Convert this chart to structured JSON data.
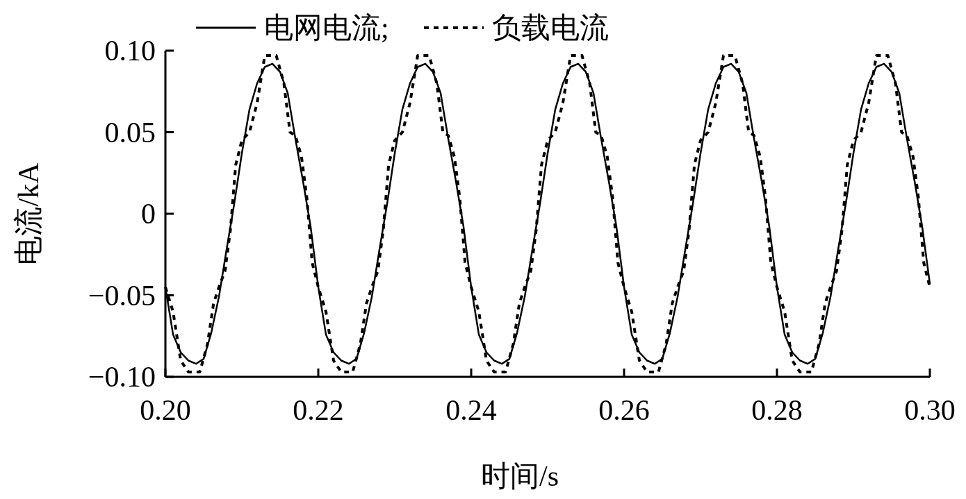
{
  "chart_data": {
    "type": "line",
    "xlabel": "时间/s",
    "ylabel": "电流/kA",
    "legend": "top",
    "xlim": [
      0.2,
      0.3
    ],
    "ylim": [
      -0.1,
      0.1
    ],
    "xticks": [
      {
        "value": 0.2,
        "label": "0.20"
      },
      0.22,
      0.24,
      0.26,
      0.28,
      {
        "value": 0.3,
        "label": "0.30"
      }
    ],
    "yticks": [
      {
        "value": -0.1,
        "label": "−0.10"
      },
      {
        "value": -0.05,
        "label": "−0.05"
      },
      0,
      0.05,
      {
        "value": 0.1,
        "label": "0.10"
      }
    ],
    "series": [
      {
        "name": "电网电流;",
        "color": "#000000",
        "line_style": "solid",
        "x": [
          0.2,
          0.201,
          0.202,
          0.203,
          0.204,
          0.205,
          0.206,
          0.207,
          0.208,
          0.209,
          0.21,
          0.211,
          0.212,
          0.213,
          0.214,
          0.215,
          0.216,
          0.217,
          0.218,
          0.219,
          0.22,
          0.221,
          0.222,
          0.223,
          0.224,
          0.225,
          0.226,
          0.227,
          0.228,
          0.229,
          0.23,
          0.231,
          0.232,
          0.233,
          0.234,
          0.235,
          0.236,
          0.237,
          0.238,
          0.239,
          0.24,
          0.241,
          0.242,
          0.243,
          0.244,
          0.245,
          0.246,
          0.247,
          0.248,
          0.249,
          0.25,
          0.251,
          0.252,
          0.253,
          0.254,
          0.255,
          0.256,
          0.257,
          0.258,
          0.259,
          0.26,
          0.261,
          0.262,
          0.263,
          0.264,
          0.265,
          0.266,
          0.267,
          0.268,
          0.269,
          0.27,
          0.271,
          0.272,
          0.273,
          0.274,
          0.275,
          0.276,
          0.277,
          0.278,
          0.279,
          0.28,
          0.281,
          0.282,
          0.283,
          0.284,
          0.285,
          0.286,
          0.287,
          0.288,
          0.289,
          0.29,
          0.291,
          0.292,
          0.293,
          0.294,
          0.295,
          0.296,
          0.297,
          0.298,
          0.299,
          0.3
        ],
        "values": [
          -0.045,
          -0.074,
          -0.085,
          -0.09,
          -0.092,
          -0.089,
          -0.073,
          -0.051,
          -0.022,
          0.006,
          0.037,
          0.064,
          0.08,
          0.09,
          0.092,
          0.087,
          0.074,
          0.046,
          0.02,
          -0.008,
          -0.045,
          -0.074,
          -0.085,
          -0.09,
          -0.092,
          -0.089,
          -0.073,
          -0.051,
          -0.022,
          0.006,
          0.037,
          0.064,
          0.08,
          0.09,
          0.092,
          0.087,
          0.074,
          0.046,
          0.02,
          -0.008,
          -0.045,
          -0.074,
          -0.085,
          -0.09,
          -0.092,
          -0.089,
          -0.073,
          -0.051,
          -0.022,
          0.006,
          0.037,
          0.064,
          0.08,
          0.09,
          0.092,
          0.087,
          0.074,
          0.046,
          0.02,
          -0.008,
          -0.045,
          -0.074,
          -0.085,
          -0.09,
          -0.092,
          -0.089,
          -0.073,
          -0.051,
          -0.022,
          0.006,
          0.037,
          0.064,
          0.08,
          0.09,
          0.092,
          0.087,
          0.074,
          0.046,
          0.02,
          -0.008,
          -0.045,
          -0.074,
          -0.085,
          -0.09,
          -0.092,
          -0.089,
          -0.073,
          -0.051,
          -0.022,
          0.006,
          0.037,
          0.064,
          0.08,
          0.09,
          0.092,
          0.087,
          0.074,
          0.046,
          0.02,
          -0.008,
          -0.043
        ]
      },
      {
        "name": "负载电流",
        "color": "#000000",
        "line_style": "dotted",
        "x": [
          0.2,
          0.201,
          0.202,
          0.203,
          0.2045,
          0.2055,
          0.2063,
          0.207,
          0.2078,
          0.2085,
          0.2092,
          0.21,
          0.211,
          0.212,
          0.213,
          0.2145,
          0.2155,
          0.2163,
          0.217,
          0.2178,
          0.2185,
          0.2192,
          0.22,
          0.221,
          0.222,
          0.223,
          0.2245,
          0.2255,
          0.2263,
          0.227,
          0.2278,
          0.2285,
          0.2292,
          0.23,
          0.231,
          0.232,
          0.233,
          0.2345,
          0.2355,
          0.2363,
          0.237,
          0.2378,
          0.2385,
          0.2392,
          0.24,
          0.241,
          0.242,
          0.243,
          0.2445,
          0.2455,
          0.2463,
          0.247,
          0.2478,
          0.2485,
          0.2492,
          0.25,
          0.251,
          0.252,
          0.253,
          0.2545,
          0.2555,
          0.2563,
          0.257,
          0.2578,
          0.2585,
          0.2592,
          0.26,
          0.261,
          0.262,
          0.263,
          0.2645,
          0.2655,
          0.2663,
          0.267,
          0.2678,
          0.2685,
          0.2692,
          0.27,
          0.271,
          0.272,
          0.273,
          0.2745,
          0.2755,
          0.2763,
          0.277,
          0.2778,
          0.2785,
          0.2792,
          0.28,
          0.281,
          0.282,
          0.283,
          0.2845,
          0.2855,
          0.2863,
          0.287,
          0.2878,
          0.2885,
          0.2892,
          0.29,
          0.291,
          0.292,
          0.293,
          0.2945,
          0.2955,
          0.2963,
          0.297,
          0.2978,
          0.2985,
          0.2992,
          0.3
        ],
        "values": [
          -0.045,
          -0.06,
          -0.09,
          -0.097,
          -0.097,
          -0.08,
          -0.055,
          -0.045,
          -0.035,
          -0.01,
          0.03,
          0.045,
          0.05,
          0.068,
          0.097,
          0.097,
          0.08,
          0.05,
          0.048,
          0.035,
          0.01,
          -0.03,
          -0.045,
          -0.06,
          -0.09,
          -0.097,
          -0.097,
          -0.08,
          -0.055,
          -0.045,
          -0.035,
          -0.01,
          0.03,
          0.045,
          0.05,
          0.068,
          0.097,
          0.097,
          0.08,
          0.05,
          0.048,
          0.035,
          0.01,
          -0.03,
          -0.045,
          -0.06,
          -0.09,
          -0.097,
          -0.097,
          -0.08,
          -0.055,
          -0.045,
          -0.035,
          -0.01,
          0.03,
          0.045,
          0.05,
          0.068,
          0.097,
          0.097,
          0.08,
          0.05,
          0.048,
          0.035,
          0.01,
          -0.03,
          -0.045,
          -0.06,
          -0.09,
          -0.097,
          -0.097,
          -0.08,
          -0.055,
          -0.045,
          -0.035,
          -0.01,
          0.03,
          0.045,
          0.05,
          0.068,
          0.097,
          0.097,
          0.08,
          0.05,
          0.048,
          0.035,
          0.01,
          -0.03,
          -0.045,
          -0.06,
          -0.09,
          -0.097,
          -0.097,
          -0.08,
          -0.055,
          -0.045,
          -0.035,
          -0.01,
          0.03,
          0.045,
          0.05,
          0.068,
          0.097,
          0.097,
          0.08,
          0.05,
          0.048,
          0.035,
          0.01,
          -0.03,
          -0.045
        ]
      }
    ]
  }
}
